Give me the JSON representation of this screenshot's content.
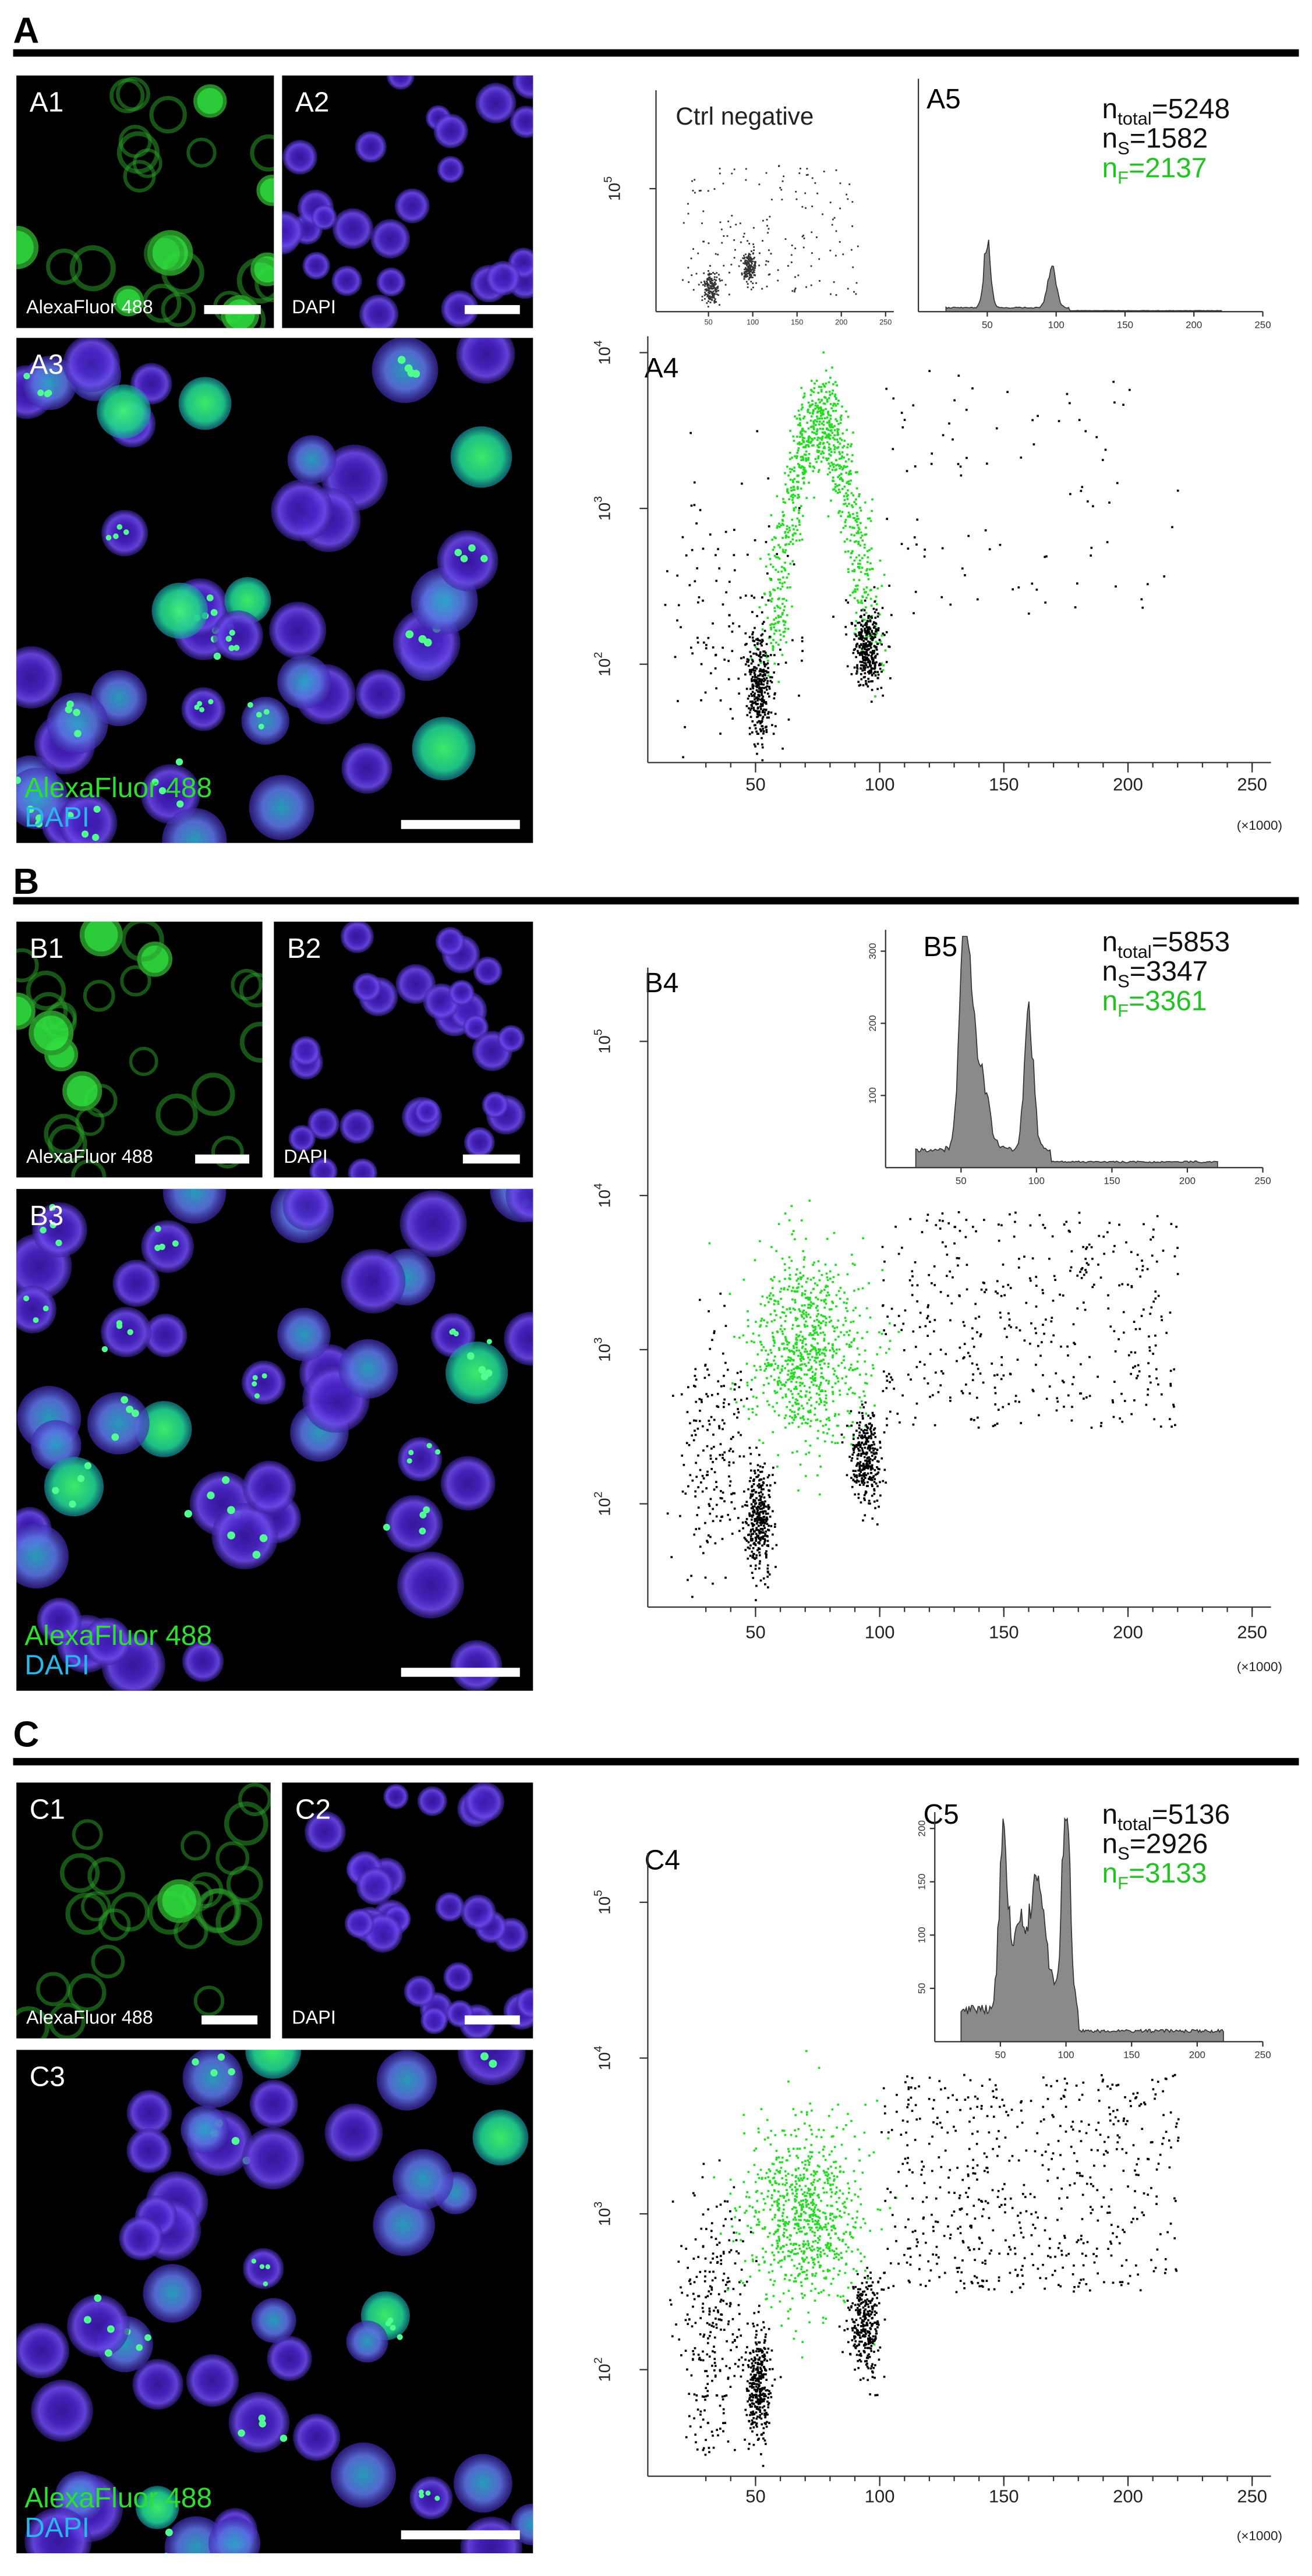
{
  "panels": [
    {
      "label": "A",
      "images": [
        {
          "label": "A1",
          "caption": "AlexaFluor 488"
        },
        {
          "label": "A2",
          "caption": "DAPI"
        },
        {
          "label": "A3",
          "captions": [
            {
              "text": "AlexaFluor 488",
              "color": "#2ee02e"
            },
            {
              "text": "DAPI",
              "color": "#29b6e8"
            }
          ]
        }
      ],
      "scatter": {
        "label": "A4",
        "xticks": [
          50,
          100,
          150,
          200,
          250
        ],
        "x_multiplier": "(×1000)",
        "yticks": [
          {
            "value": 100,
            "label": "10",
            "exponent": "2"
          },
          {
            "value": 1000,
            "label": "10",
            "exponent": "3"
          },
          {
            "value": 10000,
            "label": "10",
            "exponent": "4"
          }
        ]
      },
      "inset": {
        "title": "Ctrl negative",
        "xticks": [
          50,
          100,
          150,
          200,
          250
        ],
        "yticks": [
          {
            "value": 100000,
            "label": "10",
            "exponent": "5"
          }
        ]
      },
      "histogram": {
        "label": "A5",
        "xticks": [
          50,
          100,
          150,
          200,
          250
        ],
        "yticks": []
      },
      "counts": [
        {
          "symbol": "n",
          "subscript": "total",
          "text": "=5248",
          "color": "#111111"
        },
        {
          "symbol": "n",
          "subscript": "S",
          "text": "=1582",
          "color": "#111111"
        },
        {
          "symbol": "n",
          "subscript": "F",
          "text": "=2137",
          "color": "#22c322"
        }
      ]
    },
    {
      "label": "B",
      "images": [
        {
          "label": "B1",
          "caption": "AlexaFluor 488"
        },
        {
          "label": "B2",
          "caption": "DAPI"
        },
        {
          "label": "B3",
          "captions": [
            {
              "text": "AlexaFluor 488",
              "color": "#2ee02e"
            },
            {
              "text": "DAPI",
              "color": "#29b6e8"
            }
          ]
        }
      ],
      "scatter": {
        "label": "B4",
        "xticks": [
          50,
          100,
          150,
          200,
          250
        ],
        "x_multiplier": "(×1000)",
        "yticks": [
          {
            "value": 100,
            "label": "10",
            "exponent": "2"
          },
          {
            "value": 1000,
            "label": "10",
            "exponent": "3"
          },
          {
            "value": 10000,
            "label": "10",
            "exponent": "4"
          },
          {
            "value": 100000,
            "label": "10",
            "exponent": "5"
          }
        ]
      },
      "histogram": {
        "label": "B5",
        "xticks": [
          50,
          100,
          150,
          200,
          250
        ],
        "yticks": [
          100,
          200,
          300
        ]
      },
      "counts": [
        {
          "symbol": "n",
          "subscript": "total",
          "text": "=5853",
          "color": "#111111"
        },
        {
          "symbol": "n",
          "subscript": "S",
          "text": "=3347",
          "color": "#111111"
        },
        {
          "symbol": "n",
          "subscript": "F",
          "text": "=3361",
          "color": "#22c322"
        }
      ]
    },
    {
      "label": "C",
      "images": [
        {
          "label": "C1",
          "caption": "AlexaFluor 488"
        },
        {
          "label": "C2",
          "caption": "DAPI"
        },
        {
          "label": "C3",
          "captions": [
            {
              "text": "AlexaFluor 488",
              "color": "#2ee02e"
            },
            {
              "text": "DAPI",
              "color": "#29b6e8"
            }
          ]
        }
      ],
      "scatter": {
        "label": "C4",
        "xticks": [
          50,
          100,
          150,
          200,
          250
        ],
        "x_multiplier": "(×1000)",
        "yticks": [
          {
            "value": 100,
            "label": "10",
            "exponent": "2"
          },
          {
            "value": 1000,
            "label": "10",
            "exponent": "3"
          },
          {
            "value": 10000,
            "label": "10",
            "exponent": "4"
          },
          {
            "value": 100000,
            "label": "10",
            "exponent": "5"
          }
        ]
      },
      "histogram": {
        "label": "C5",
        "xticks": [
          50,
          100,
          150,
          200,
          250
        ],
        "yticks": [
          50,
          100,
          150,
          200
        ]
      },
      "counts": [
        {
          "symbol": "n",
          "subscript": "total",
          "text": "=5136",
          "color": "#111111"
        },
        {
          "symbol": "n",
          "subscript": "S",
          "text": "=2926",
          "color": "#111111"
        },
        {
          "symbol": "n",
          "subscript": "F",
          "text": "=3133",
          "color": "#22c322"
        }
      ]
    }
  ]
}
